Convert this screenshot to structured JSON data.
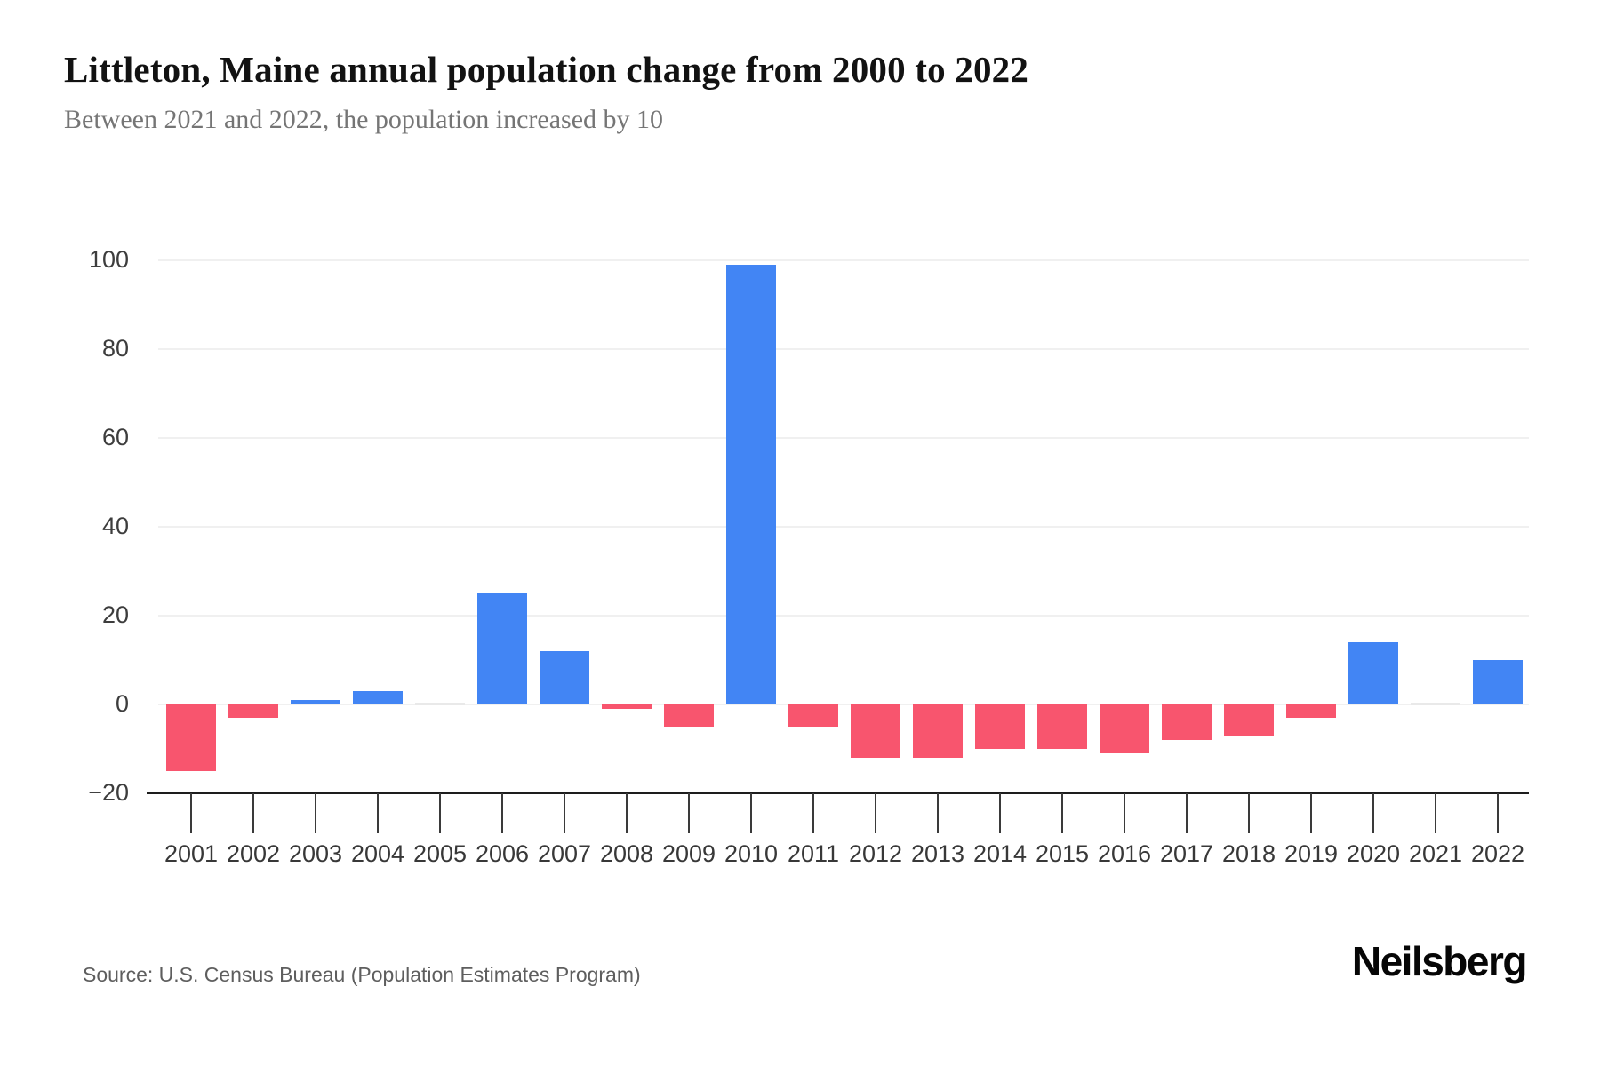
{
  "chart_data": {
    "type": "bar",
    "title": "Littleton, Maine annual population change from 2000 to 2022",
    "subtitle": "Between 2021 and 2022, the population increased by 10",
    "categories": [
      "2001",
      "2002",
      "2003",
      "2004",
      "2005",
      "2006",
      "2007",
      "2008",
      "2009",
      "2010",
      "2011",
      "2012",
      "2013",
      "2014",
      "2015",
      "2016",
      "2017",
      "2018",
      "2019",
      "2020",
      "2021",
      "2022"
    ],
    "values": [
      -15,
      -3,
      1,
      3,
      0,
      25,
      12,
      -1,
      -5,
      99,
      -5,
      -12,
      -12,
      -10,
      -10,
      -11,
      -8,
      -7,
      -3,
      14,
      0,
      10
    ],
    "xlabel": "",
    "ylabel": "",
    "ylim": [
      -20,
      100
    ],
    "y_ticks": [
      100,
      80,
      60,
      40,
      20,
      0,
      -20
    ],
    "y_tick_labels": [
      "100",
      "80",
      "60",
      "40",
      "20",
      "0",
      "−20"
    ],
    "grid": "horizontal",
    "legend": "none",
    "positive_color": "#4285F4",
    "negative_color": "#F8556E",
    "zero_color": "#E9E9E9"
  },
  "footer": {
    "source": "Source: U.S. Census Bureau (Population Estimates Program)",
    "brand": "Neilsberg"
  }
}
